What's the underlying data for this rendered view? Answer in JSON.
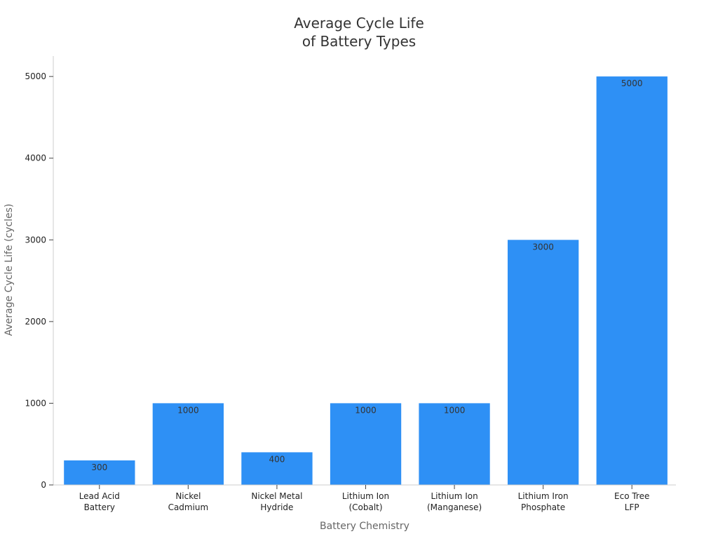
{
  "chart_data": {
    "type": "bar",
    "title": [
      "Average Cycle Life",
      "of Battery Types"
    ],
    "xlabel": "Battery Chemistry",
    "ylabel": "Average Cycle Life (cycles)",
    "categories": [
      [
        "Lead Acid",
        "Battery"
      ],
      [
        "Nickel",
        "Cadmium"
      ],
      [
        "Nickel Metal",
        "Hydride"
      ],
      [
        "Lithium Ion",
        "(Cobalt)"
      ],
      [
        "Lithium Ion",
        "(Manganese)"
      ],
      [
        "Lithium Iron",
        "Phosphate"
      ],
      [
        "Eco Tree",
        "LFP"
      ]
    ],
    "values": [
      300,
      1000,
      400,
      1000,
      1000,
      3000,
      5000
    ],
    "data_labels": [
      "300",
      "1000",
      "400",
      "1000",
      "1000",
      "3000",
      "5000"
    ],
    "ylim": [
      0,
      5250
    ],
    "yticks": [
      0,
      1000,
      2000,
      3000,
      4000,
      5000
    ],
    "ytick_labels": [
      "0",
      "1000",
      "2000",
      "3000",
      "4000",
      "5000"
    ],
    "grid": false,
    "legend": "none",
    "bar_color": "#2e90f5"
  }
}
